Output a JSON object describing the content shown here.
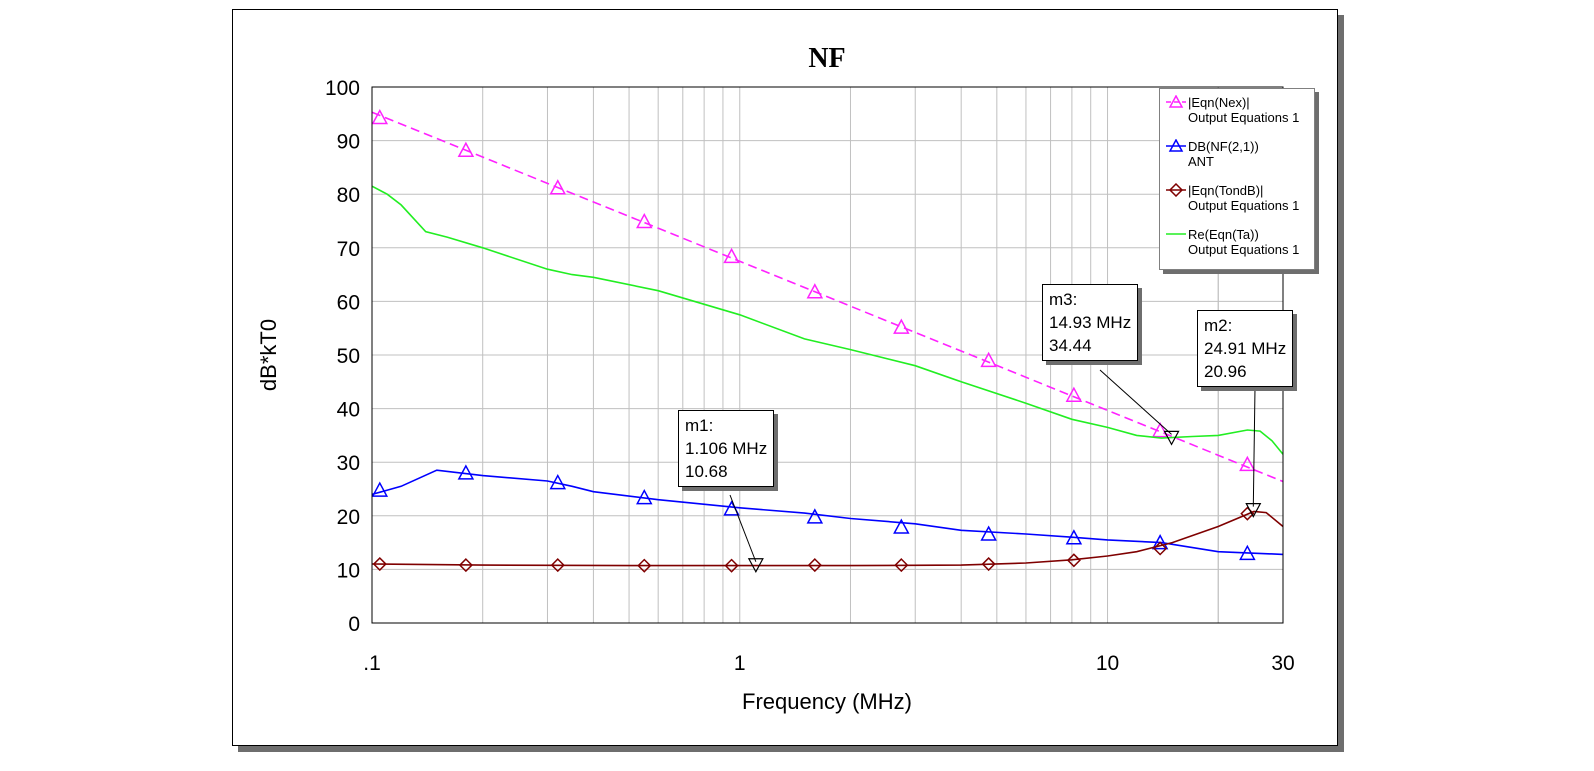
{
  "chart_data": {
    "type": "line",
    "title": "NF",
    "xlabel": "Frequency (MHz)",
    "ylabel": "dB*kT0",
    "xscale": "log",
    "xlim": [
      0.1,
      30
    ],
    "ylim": [
      0,
      100
    ],
    "xticks": [
      {
        "value": 0.1,
        "label": ".1"
      },
      {
        "value": 1,
        "label": "1"
      },
      {
        "value": 10,
        "label": "10"
      },
      {
        "value": 30,
        "label": "30"
      }
    ],
    "yticks": [
      0,
      10,
      20,
      30,
      40,
      50,
      60,
      70,
      80,
      90,
      100
    ],
    "grid": true,
    "legend_position": "top-right",
    "series": [
      {
        "name": "|Eqn(Nex)|",
        "source": "Output Equations 1",
        "color": "#ff22ff",
        "dashed": true,
        "marker": "triangle",
        "x": [
          0.1,
          30
        ],
        "y": [
          95.3,
          26.4
        ],
        "marker_x": [
          0.105,
          0.18,
          0.32,
          0.55,
          0.95,
          1.6,
          2.75,
          4.75,
          8.1,
          13.9,
          24.0
        ],
        "marker_y": [
          94.3,
          88.2,
          81.2,
          74.9,
          68.4,
          61.8,
          55.2,
          49.0,
          42.5,
          35.9,
          29.6
        ]
      },
      {
        "name": "DB(NF(2,1))",
        "source": "ANT",
        "color": "#0000ff",
        "dashed": false,
        "marker": "triangle",
        "x": [
          0.1,
          0.12,
          0.15,
          0.2,
          0.3,
          0.35,
          0.4,
          0.6,
          1.0,
          1.5,
          2.0,
          3.0,
          4.0,
          6.0,
          8.0,
          10.0,
          14.0,
          20.0,
          30.0
        ],
        "y": [
          24.0,
          25.5,
          28.5,
          27.5,
          26.5,
          25.5,
          24.5,
          23.0,
          21.5,
          20.5,
          19.5,
          18.5,
          17.3,
          16.6,
          16.0,
          15.5,
          15.0,
          13.3,
          12.8
        ],
        "marker_x": [
          0.105,
          0.18,
          0.32,
          0.55,
          0.95,
          1.6,
          2.75,
          4.75,
          8.1,
          13.9,
          24.0
        ],
        "marker_y": [
          24.8,
          28.0,
          26.2,
          23.4,
          21.3,
          19.8,
          17.9,
          16.6,
          15.9,
          15.0,
          13.0
        ]
      },
      {
        "name": "|Eqn(TondB)|",
        "source": "Output Equations 1",
        "color": "#7f0000",
        "dashed": false,
        "marker": "diamond",
        "x": [
          0.1,
          0.2,
          0.5,
          1.0,
          2.0,
          4.0,
          6.0,
          8.0,
          10.0,
          12.0,
          15.0,
          20.0,
          25.0,
          27.0,
          30.0
        ],
        "y": [
          11.0,
          10.8,
          10.7,
          10.7,
          10.7,
          10.8,
          11.2,
          11.8,
          12.5,
          13.3,
          15.0,
          18.0,
          20.8,
          20.6,
          18.0
        ],
        "marker_x": [
          0.105,
          0.18,
          0.32,
          0.55,
          0.95,
          1.6,
          2.75,
          4.75,
          8.1,
          13.9,
          24.0
        ],
        "marker_y": [
          11.0,
          10.8,
          10.8,
          10.7,
          10.7,
          10.8,
          10.8,
          11.0,
          11.7,
          13.9,
          20.4
        ]
      },
      {
        "name": "Re(Eqn(Ta))",
        "source": "Output Equations 1",
        "color": "#22ee22",
        "dashed": false,
        "marker": "none",
        "x": [
          0.1,
          0.11,
          0.12,
          0.14,
          0.16,
          0.2,
          0.3,
          0.35,
          0.4,
          0.6,
          1.0,
          1.5,
          2.0,
          3.0,
          4.0,
          6.0,
          8.0,
          10.0,
          12.0,
          14.0,
          17.0,
          20.0,
          24.0,
          26.0,
          28.0,
          30.0
        ],
        "y": [
          81.5,
          80.0,
          78.0,
          73.0,
          72.0,
          70.0,
          66.0,
          65.0,
          64.5,
          62.0,
          57.5,
          53.0,
          51.0,
          48.0,
          45.0,
          41.0,
          38.0,
          36.5,
          35.0,
          34.5,
          34.8,
          35.0,
          36.0,
          35.8,
          34.0,
          31.5
        ]
      }
    ],
    "markers": [
      {
        "label": "m1:",
        "x_text": "1.106 MHz",
        "y_text": "10.68",
        "x": 1.106,
        "y": 10.68
      },
      {
        "label": "m3:",
        "x_text": "14.93 MHz",
        "y_text": "34.44",
        "x": 14.93,
        "y": 34.44
      },
      {
        "label": "m2:",
        "x_text": "24.91 MHz",
        "y_text": "20.96",
        "x": 24.91,
        "y": 20.96
      }
    ]
  }
}
